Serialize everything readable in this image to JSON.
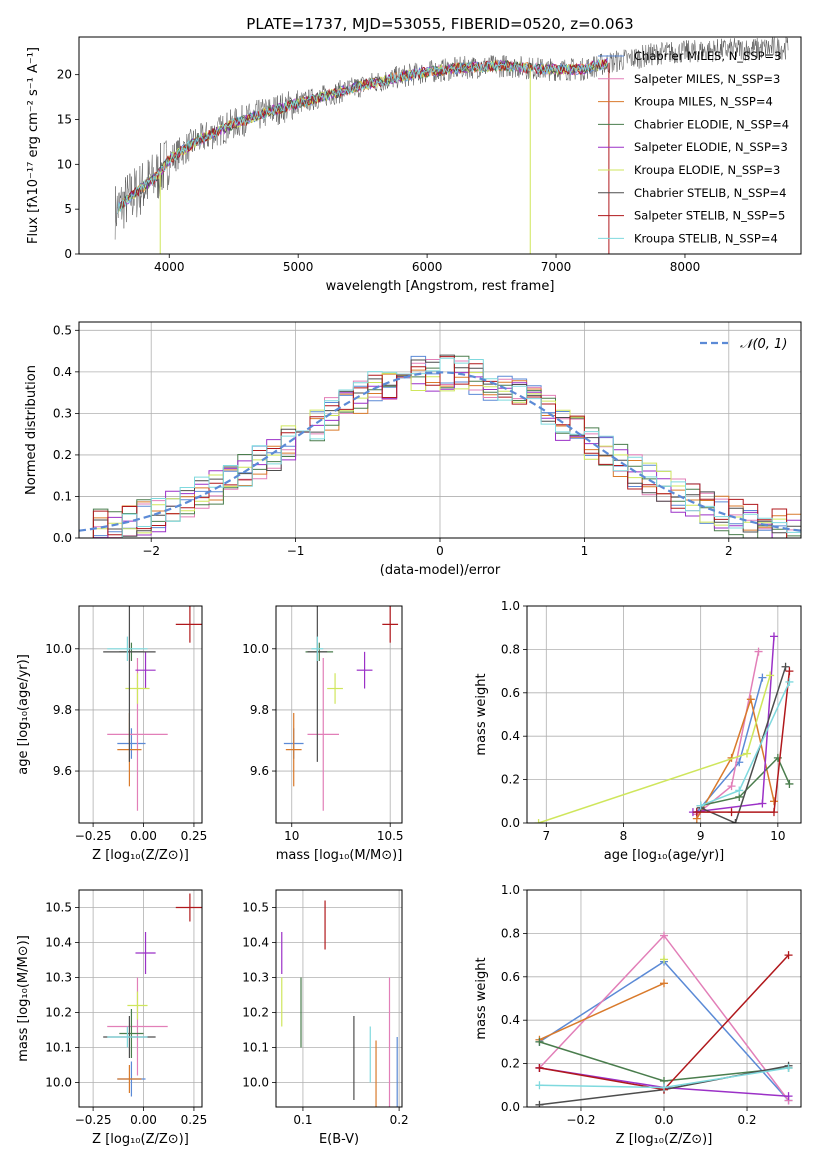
{
  "figure": {
    "title": "PLATE=1737, MJD=53055, FIBERID=0520, z=0.063"
  },
  "colors": {
    "Chabrier MILES": "#5b8ad6",
    "Salpeter MILES": "#e27fb8",
    "Kroupa MILES": "#d97a2b",
    "Chabrier ELODIE": "#4a7d4d",
    "Salpeter ELODIE": "#9b31c7",
    "Kroupa ELODIE": "#cfe65c",
    "Chabrier STELIB": "#4d4d4d",
    "Salpeter STELIB": "#b0181c",
    "Kroupa STELIB": "#7fd9de",
    "gaussian": "#5b8ad6"
  },
  "chart_data": [
    {
      "id": "spectrum",
      "type": "line",
      "xlabel": "wavelength [Angstrom, rest frame]",
      "ylabel": "Flux [fλ10⁻¹⁷ erg cm⁻² s⁻¹ A⁻¹]",
      "xlim": [
        3300,
        8900
      ],
      "ylim": [
        0,
        24.2
      ],
      "xticks": [
        4000,
        5000,
        6000,
        7000,
        8000
      ],
      "yticks": [
        0,
        5,
        10,
        15,
        20
      ],
      "grid": false,
      "legend": "top-right",
      "legend_entries": [
        "Chabrier MILES, N_SSP=3",
        "Salpeter MILES, N_SSP=3",
        "Kroupa MILES, N_SSP=4",
        "Chabrier ELODIE, N_SSP=4",
        "Salpeter ELODIE, N_SSP=3",
        "Kroupa ELODIE, N_SSP=3",
        "Chabrier STELIB, N_SSP=4",
        "Salpeter STELIB, N_SSP=5",
        "Kroupa STELIB, N_SSP=4"
      ],
      "continuum": [
        [
          3580,
          4.8
        ],
        [
          3700,
          6.4
        ],
        [
          3900,
          8.6
        ],
        [
          4000,
          10.5
        ],
        [
          4200,
          12.5
        ],
        [
          4500,
          14.5
        ],
        [
          4800,
          16.0
        ],
        [
          5000,
          16.8
        ],
        [
          5200,
          17.6
        ],
        [
          5500,
          18.8
        ],
        [
          5800,
          19.8
        ],
        [
          6000,
          20.3
        ],
        [
          6300,
          20.8
        ],
        [
          6600,
          21.0
        ],
        [
          6900,
          20.6
        ],
        [
          7200,
          20.6
        ],
        [
          7400,
          21.3
        ],
        [
          7800,
          22.4
        ],
        [
          8200,
          22.7
        ],
        [
          8600,
          22.9
        ],
        [
          8800,
          23.0
        ]
      ],
      "models_xrange": [
        3600,
        7400
      ]
    },
    {
      "id": "residuals",
      "type": "bar",
      "xlabel": "(data-model)/error",
      "ylabel": "Normed distribution",
      "xlim": [
        -2.5,
        2.5
      ],
      "ylim": [
        0,
        0.52
      ],
      "xticks": [
        -2,
        -1,
        0,
        1,
        2
      ],
      "yticks": [
        0.0,
        0.1,
        0.2,
        0.3,
        0.4,
        0.5
      ],
      "grid": true,
      "legend": "top-right",
      "legend_entries": [
        "𝒩(0, 1)"
      ],
      "bin_width": 0.1
    },
    {
      "id": "age-vs-z",
      "type": "scatter",
      "xlabel": "Z [log₁₀(Z/Z⊙)]",
      "ylabel": "age  [log₁₀(age/yr)]",
      "xlim": [
        -0.32,
        0.29
      ],
      "ylim": [
        9.43,
        10.14
      ],
      "xticks": [
        -0.25,
        0.0,
        0.25
      ],
      "xtick_labels": [
        "−0.25",
        "0.00",
        "0.25"
      ],
      "yticks": [
        9.6,
        9.8,
        10.0
      ],
      "grid": true,
      "points": [
        {
          "model": "Chabrier MILES",
          "x": -0.06,
          "xerr": 0.07,
          "y": 9.69,
          "yerr": 0.05
        },
        {
          "model": "Salpeter MILES",
          "x": -0.03,
          "xerr": 0.15,
          "y": 9.72,
          "yerr": 0.25
        },
        {
          "model": "Kroupa MILES",
          "x": -0.07,
          "xerr": 0.06,
          "y": 9.67,
          "yerr": 0.12
        },
        {
          "model": "Chabrier ELODIE",
          "x": -0.06,
          "xerr": 0.06,
          "y": 9.99,
          "yerr": 0.03
        },
        {
          "model": "Salpeter ELODIE",
          "x": 0.01,
          "xerr": 0.05,
          "y": 9.93,
          "yerr": 0.06
        },
        {
          "model": "Kroupa ELODIE",
          "x": -0.03,
          "xerr": 0.06,
          "y": 9.87,
          "yerr": 0.05
        },
        {
          "model": "Chabrier STELIB",
          "x": -0.07,
          "xerr": 0.13,
          "y": 9.99,
          "yerr": 0.36
        },
        {
          "model": "Salpeter STELIB",
          "x": 0.23,
          "xerr": 0.07,
          "y": 10.08,
          "yerr": 0.06
        },
        {
          "model": "Kroupa STELIB",
          "x": -0.08,
          "xerr": 0.1,
          "y": 10.0,
          "yerr": 0.04
        }
      ]
    },
    {
      "id": "age-vs-mass",
      "type": "scatter",
      "xlabel": "mass [log₁₀(M/M⊙)]",
      "ylabel": "",
      "xlim": [
        9.92,
        10.56
      ],
      "ylim": [
        9.43,
        10.14
      ],
      "xticks": [
        10.0,
        10.5
      ],
      "yticks": [
        9.6,
        9.8,
        10.0
      ],
      "grid": true,
      "points": [
        {
          "model": "Chabrier MILES",
          "x": 10.01,
          "xerr": 0.05,
          "y": 9.69,
          "yerr": 0.05
        },
        {
          "model": "Salpeter MILES",
          "x": 10.16,
          "xerr": 0.08,
          "y": 9.72,
          "yerr": 0.25
        },
        {
          "model": "Kroupa MILES",
          "x": 10.01,
          "xerr": 0.04,
          "y": 9.67,
          "yerr": 0.12
        },
        {
          "model": "Chabrier ELODIE",
          "x": 10.14,
          "xerr": 0.07,
          "y": 9.99,
          "yerr": 0.03
        },
        {
          "model": "Salpeter ELODIE",
          "x": 10.37,
          "xerr": 0.04,
          "y": 9.93,
          "yerr": 0.06
        },
        {
          "model": "Kroupa ELODIE",
          "x": 10.22,
          "xerr": 0.04,
          "y": 9.87,
          "yerr": 0.05
        },
        {
          "model": "Chabrier STELIB",
          "x": 10.13,
          "xerr": 0.05,
          "y": 9.99,
          "yerr": 0.36
        },
        {
          "model": "Salpeter STELIB",
          "x": 10.5,
          "xerr": 0.04,
          "y": 10.08,
          "yerr": 0.06
        },
        {
          "model": "Kroupa STELIB",
          "x": 10.13,
          "xerr": 0.03,
          "y": 10.0,
          "yerr": 0.04
        }
      ]
    },
    {
      "id": "weight-vs-age",
      "type": "line",
      "xlabel": "age  [log₁₀(age/yr)]",
      "ylabel": "mass weight",
      "xlim": [
        6.75,
        10.3
      ],
      "ylim": [
        0,
        1.0
      ],
      "xticks": [
        7,
        8,
        9,
        10
      ],
      "yticks": [
        0.0,
        0.2,
        0.4,
        0.6,
        0.8,
        1.0
      ],
      "grid": true,
      "series": [
        {
          "model": "Chabrier MILES",
          "x": [
            8.95,
            9.5,
            9.8
          ],
          "y": [
            0.05,
            0.28,
            0.67
          ]
        },
        {
          "model": "Salpeter MILES",
          "x": [
            8.95,
            9.4,
            9.75
          ],
          "y": [
            0.04,
            0.17,
            0.79
          ]
        },
        {
          "model": "Kroupa MILES",
          "x": [
            8.95,
            9.4,
            9.65,
            9.95
          ],
          "y": [
            0.02,
            0.3,
            0.57,
            0.1
          ]
        },
        {
          "model": "Chabrier ELODIE",
          "x": [
            9.0,
            9.5,
            10.0,
            10.15
          ],
          "y": [
            0.08,
            0.12,
            0.3,
            0.18
          ]
        },
        {
          "model": "Salpeter ELODIE",
          "x": [
            8.9,
            9.8,
            9.95
          ],
          "y": [
            0.05,
            0.09,
            0.86
          ]
        },
        {
          "model": "Kroupa ELODIE",
          "x": [
            6.9,
            9.6,
            9.9
          ],
          "y": [
            0.0,
            0.32,
            0.68
          ]
        },
        {
          "model": "Chabrier STELIB",
          "x": [
            9.0,
            9.45,
            10.1
          ],
          "y": [
            0.07,
            0.0,
            0.72
          ]
        },
        {
          "model": "Salpeter STELIB",
          "x": [
            8.95,
            9.4,
            9.95,
            10.15
          ],
          "y": [
            0.05,
            0.05,
            0.05,
            0.7
          ]
        },
        {
          "model": "Kroupa STELIB",
          "x": [
            9.0,
            9.5,
            10.15
          ],
          "y": [
            0.08,
            0.15,
            0.65
          ]
        }
      ]
    },
    {
      "id": "mass-vs-z",
      "type": "scatter",
      "xlabel": "Z [log₁₀(Z/Z⊙)]",
      "ylabel": "mass [log₁₀(M/M⊙)]",
      "xlim": [
        -0.32,
        0.29
      ],
      "ylim": [
        9.93,
        10.55
      ],
      "xticks": [
        -0.25,
        0.0,
        0.25
      ],
      "xtick_labels": [
        "−0.25",
        "0.00",
        "0.25"
      ],
      "yticks": [
        10.0,
        10.1,
        10.2,
        10.3,
        10.4,
        10.5
      ],
      "grid": true,
      "points": [
        {
          "model": "Chabrier MILES",
          "x": -0.06,
          "xerr": 0.07,
          "y": 10.01,
          "yerr": 0.05
        },
        {
          "model": "Salpeter MILES",
          "x": -0.03,
          "xerr": 0.15,
          "y": 10.16,
          "yerr": 0.14
        },
        {
          "model": "Kroupa MILES",
          "x": -0.07,
          "xerr": 0.06,
          "y": 10.01,
          "yerr": 0.04
        },
        {
          "model": "Chabrier ELODIE",
          "x": -0.06,
          "xerr": 0.06,
          "y": 10.14,
          "yerr": 0.07
        },
        {
          "model": "Salpeter ELODIE",
          "x": 0.01,
          "xerr": 0.05,
          "y": 10.37,
          "yerr": 0.06
        },
        {
          "model": "Kroupa ELODIE",
          "x": -0.03,
          "xerr": 0.05,
          "y": 10.22,
          "yerr": 0.04
        },
        {
          "model": "Chabrier STELIB",
          "x": -0.07,
          "xerr": 0.13,
          "y": 10.13,
          "yerr": 0.06
        },
        {
          "model": "Salpeter STELIB",
          "x": 0.23,
          "xerr": 0.07,
          "y": 10.5,
          "yerr": 0.04
        },
        {
          "model": "Kroupa STELIB",
          "x": -0.08,
          "xerr": 0.1,
          "y": 10.13,
          "yerr": 0.03
        }
      ]
    },
    {
      "id": "mass-vs-ebv",
      "type": "scatter",
      "xlabel": "E(B-V)",
      "ylabel": "",
      "xlim": [
        0.072,
        0.203
      ],
      "ylim": [
        9.93,
        10.55
      ],
      "xticks": [
        0.1,
        0.2
      ],
      "yticks": [
        10.0,
        10.1,
        10.2,
        10.3,
        10.4,
        10.5
      ],
      "grid": true,
      "points": [
        {
          "model": "Chabrier MILES",
          "x": 0.198,
          "xerr": 0,
          "y": 10.0,
          "yerr": 0.13
        },
        {
          "model": "Salpeter MILES",
          "x": 0.19,
          "xerr": 0,
          "y": 10.11,
          "yerr": 0.19
        },
        {
          "model": "Kroupa MILES",
          "x": 0.176,
          "xerr": 0,
          "y": 10.0,
          "yerr": 0.12
        },
        {
          "model": "Chabrier ELODIE",
          "x": 0.098,
          "xerr": 0,
          "y": 10.2,
          "yerr": 0.1
        },
        {
          "model": "Salpeter ELODIE",
          "x": 0.078,
          "xerr": 0,
          "y": 10.37,
          "yerr": 0.06
        },
        {
          "model": "Kroupa ELODIE",
          "x": 0.078,
          "xerr": 0,
          "y": 10.23,
          "yerr": 0.07
        },
        {
          "model": "Chabrier STELIB",
          "x": 0.153,
          "xerr": 0,
          "y": 10.07,
          "yerr": 0.12
        },
        {
          "model": "Salpeter STELIB",
          "x": 0.123,
          "xerr": 0,
          "y": 10.45,
          "yerr": 0.07
        },
        {
          "model": "Kroupa STELIB",
          "x": 0.17,
          "xerr": 0,
          "y": 10.08,
          "yerr": 0.08
        }
      ]
    },
    {
      "id": "weight-vs-z",
      "type": "line",
      "xlabel": "Z [log₁₀(Z/Z⊙)]",
      "ylabel": "mass weight",
      "xlim": [
        -0.33,
        0.33
      ],
      "ylim": [
        0,
        1.0
      ],
      "xticks": [
        -0.2,
        0.0,
        0.2
      ],
      "xtick_labels": [
        "−0.2",
        "0.0",
        "0.2"
      ],
      "yticks": [
        0.0,
        0.2,
        0.4,
        0.6,
        0.8,
        1.0
      ],
      "grid": true,
      "series": [
        {
          "model": "Chabrier MILES",
          "x": [
            -0.3,
            0.0,
            0.3
          ],
          "y": [
            0.3,
            0.67,
            0.03
          ]
        },
        {
          "model": "Salpeter MILES",
          "x": [
            -0.3,
            0.0,
            0.3
          ],
          "y": [
            0.18,
            0.79,
            0.03
          ]
        },
        {
          "model": "Kroupa MILES",
          "x": [
            -0.3,
            0.0
          ],
          "y": [
            0.31,
            0.57
          ]
        },
        {
          "model": "Chabrier ELODIE",
          "x": [
            -0.3,
            0.0,
            0.3
          ],
          "y": [
            0.3,
            0.12,
            0.18
          ]
        },
        {
          "model": "Salpeter ELODIE",
          "x": [
            -0.3,
            0.0,
            0.3
          ],
          "y": [
            0.18,
            0.09,
            0.05
          ]
        },
        {
          "model": "Kroupa ELODIE",
          "x": [
            0.0
          ],
          "y": [
            0.68
          ]
        },
        {
          "model": "Chabrier STELIB",
          "x": [
            -0.3,
            0.0,
            0.3
          ],
          "y": [
            0.01,
            0.08,
            0.19
          ]
        },
        {
          "model": "Salpeter STELIB",
          "x": [
            -0.3,
            0.0,
            0.3
          ],
          "y": [
            0.18,
            0.08,
            0.7
          ]
        },
        {
          "model": "Kroupa STELIB",
          "x": [
            -0.3,
            0.0,
            0.3
          ],
          "y": [
            0.1,
            0.09,
            0.18
          ]
        }
      ]
    }
  ]
}
